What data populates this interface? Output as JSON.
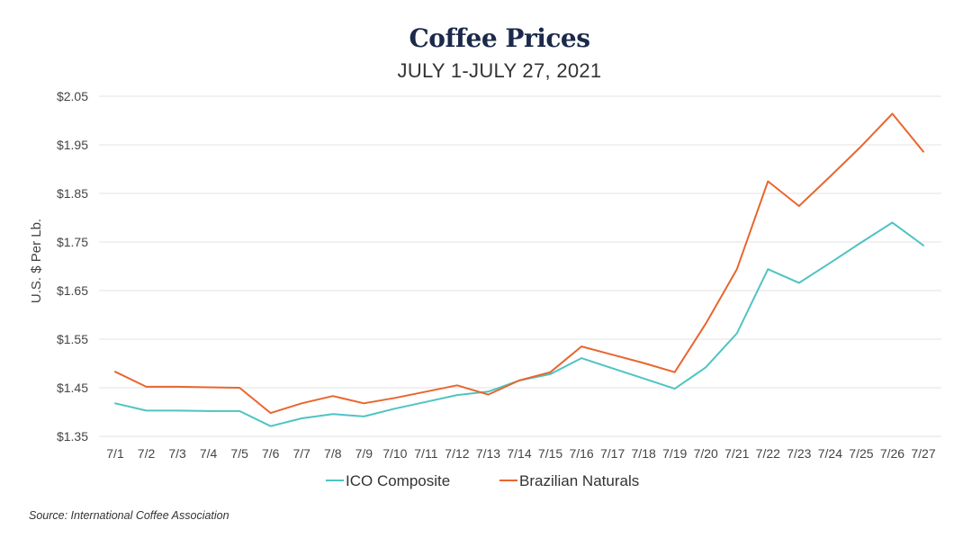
{
  "chart_data": {
    "type": "line",
    "title": "Coffee Prices",
    "subtitle": "JULY 1-JULY 27, 2021",
    "ylabel": "U.S. $ Per Lb.",
    "xlabel": "",
    "ylim": [
      1.35,
      2.05
    ],
    "yticks": [
      "$2.05",
      "$1.95",
      "$1.85",
      "$1.75",
      "$1.65",
      "$1.55",
      "$1.45",
      "$1.35"
    ],
    "ytick_values": [
      2.05,
      1.95,
      1.85,
      1.75,
      1.65,
      1.55,
      1.45,
      1.35
    ],
    "categories": [
      "7/1",
      "7/2",
      "7/3",
      "7/4",
      "7/5",
      "7/6",
      "7/7",
      "7/8",
      "7/9",
      "7/10",
      "7/11",
      "7/12",
      "7/13",
      "7/14",
      "7/15",
      "7/16",
      "7/17",
      "7/18",
      "7/19",
      "7/20",
      "7/21",
      "7/22",
      "7/23",
      "7/24",
      "7/25",
      "7/26",
      "7/27"
    ],
    "grid": true,
    "legend_position": "bottom-center",
    "series": [
      {
        "name": "ICO Composite",
        "color": "#4fc3c3",
        "values": [
          1.418,
          1.403,
          1.403,
          1.402,
          1.402,
          1.371,
          1.387,
          1.396,
          1.391,
          1.407,
          1.421,
          1.435,
          1.442,
          1.465,
          1.478,
          1.511,
          1.49,
          1.469,
          1.448,
          1.492,
          1.562,
          1.694,
          1.666,
          1.707,
          1.749,
          1.79,
          1.743
        ]
      },
      {
        "name": "Brazilian Naturals",
        "color": "#e8662e",
        "values": [
          1.483,
          1.452,
          1.452,
          1.451,
          1.45,
          1.398,
          1.418,
          1.433,
          1.418,
          1.429,
          1.442,
          1.455,
          1.436,
          1.465,
          1.482,
          1.535,
          1.518,
          1.501,
          1.482,
          1.582,
          1.694,
          1.875,
          1.824,
          1.885,
          1.947,
          2.014,
          1.936
        ]
      }
    ]
  },
  "source_note": "Source: International Coffee Association"
}
